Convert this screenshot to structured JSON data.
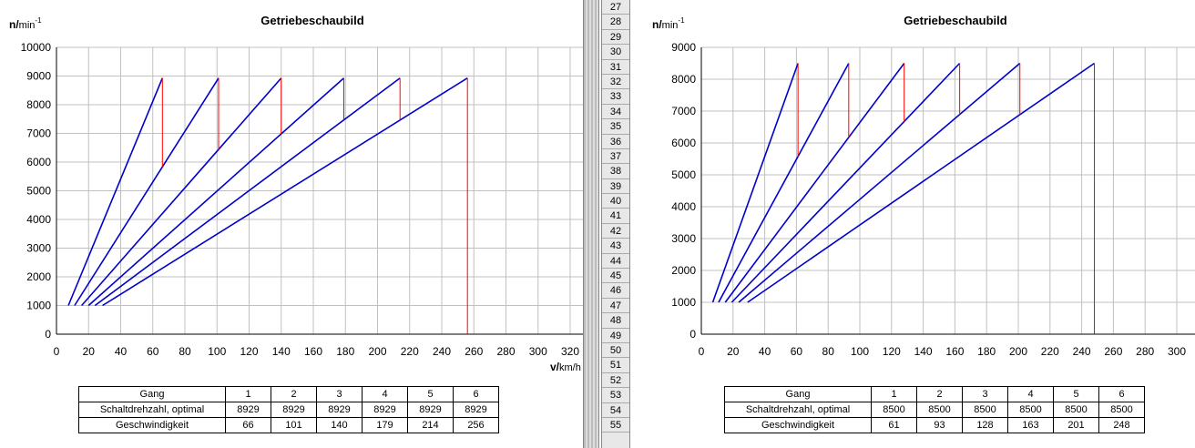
{
  "chart_data": [
    {
      "type": "line",
      "title": "Getriebeschaubild",
      "y_label": {
        "main": "n/",
        "unit": "min",
        "exp": "-1"
      },
      "x_label": {
        "main": "v/",
        "unit": "km/h"
      },
      "xlim": [
        0,
        320
      ],
      "xticks": [
        0,
        20,
        40,
        60,
        80,
        100,
        120,
        140,
        160,
        180,
        200,
        220,
        240,
        260,
        280,
        300,
        320
      ],
      "ylim": [
        0,
        10000
      ],
      "yticks": [
        0,
        1000,
        2000,
        3000,
        4000,
        5000,
        6000,
        7000,
        8000,
        9000,
        10000
      ],
      "grid": true,
      "series": [
        {
          "color": "#0000cc",
          "x": [
            7.4,
            66
          ],
          "values": [
            1000,
            8929
          ]
        },
        {
          "color": "#0000cc",
          "x": [
            11.3,
            101
          ],
          "values": [
            1000,
            8929
          ]
        },
        {
          "color": "#0000cc",
          "x": [
            15.7,
            140
          ],
          "values": [
            1000,
            8929
          ]
        },
        {
          "color": "#0000cc",
          "x": [
            20,
            179
          ],
          "values": [
            1000,
            8929
          ]
        },
        {
          "color": "#0000cc",
          "x": [
            24,
            214
          ],
          "values": [
            1000,
            8929
          ]
        },
        {
          "color": "#0000cc",
          "x": [
            28.7,
            256
          ],
          "values": [
            1000,
            8929
          ]
        },
        {
          "color": "#ff0000",
          "x": [
            66,
            66
          ],
          "values": [
            8929,
            5835
          ]
        },
        {
          "color": "#ff0000",
          "x": [
            101,
            101
          ],
          "values": [
            8929,
            6442
          ]
        },
        {
          "color": "#ff0000",
          "x": [
            140,
            140
          ],
          "values": [
            8929,
            6984
          ]
        },
        {
          "color": "#ff0000",
          "x": [
            179,
            179
          ],
          "values": [
            8929,
            7469
          ]
        },
        {
          "color": "#ff0000",
          "x": [
            214,
            214
          ],
          "values": [
            8929,
            7464
          ]
        },
        {
          "color": "#ff0000",
          "x": [
            256,
            256
          ],
          "values": [
            8929,
            0
          ]
        }
      ]
    },
    {
      "type": "line",
      "title": "Getriebeschaubild",
      "y_label": {
        "main": "n/",
        "unit": "min",
        "exp": "-1"
      },
      "xlim": [
        0,
        300
      ],
      "xticks": [
        0,
        20,
        40,
        60,
        80,
        100,
        120,
        140,
        160,
        180,
        200,
        220,
        240,
        260,
        280,
        300
      ],
      "ylim": [
        0,
        9000
      ],
      "yticks": [
        0,
        1000,
        2000,
        3000,
        4000,
        5000,
        6000,
        7000,
        8000,
        9000
      ],
      "grid": true,
      "series": [
        {
          "color": "#0000cc",
          "x": [
            7.2,
            61
          ],
          "values": [
            1000,
            8500
          ]
        },
        {
          "color": "#0000cc",
          "x": [
            10.9,
            93
          ],
          "values": [
            1000,
            8500
          ]
        },
        {
          "color": "#0000cc",
          "x": [
            15.1,
            128
          ],
          "values": [
            1000,
            8500
          ]
        },
        {
          "color": "#0000cc",
          "x": [
            19.2,
            163
          ],
          "values": [
            1000,
            8500
          ]
        },
        {
          "color": "#0000cc",
          "x": [
            23.6,
            201
          ],
          "values": [
            1000,
            8500
          ]
        },
        {
          "color": "#0000cc",
          "x": [
            29.2,
            248
          ],
          "values": [
            1000,
            8500
          ]
        },
        {
          "color": "#ff0000",
          "x": [
            61,
            61
          ],
          "values": [
            8500,
            5575
          ]
        },
        {
          "color": "#ff0000",
          "x": [
            93,
            93
          ],
          "values": [
            8500,
            6176
          ]
        },
        {
          "color": "#ff0000",
          "x": [
            128,
            128
          ],
          "values": [
            8500,
            6675
          ]
        },
        {
          "color": "#ff0000",
          "x": [
            163,
            163
          ],
          "values": [
            8500,
            6893
          ]
        },
        {
          "color": "#ff0000",
          "x": [
            201,
            201
          ],
          "values": [
            8500,
            6889
          ]
        },
        {
          "color": "#ff0000",
          "x": [
            248,
            248
          ],
          "values": [
            8500,
            0
          ]
        }
      ]
    }
  ],
  "tables": [
    {
      "header": [
        "Gang",
        "1",
        "2",
        "3",
        "4",
        "5",
        "6"
      ],
      "rows": [
        [
          "Schaltdrehzahl, optimal",
          "8929",
          "8929",
          "8929",
          "8929",
          "8929",
          "8929"
        ],
        [
          "Geschwindigkeit",
          "66",
          "101",
          "140",
          "179",
          "214",
          "256"
        ]
      ]
    },
    {
      "header": [
        "Gang",
        "1",
        "2",
        "3",
        "4",
        "5",
        "6"
      ],
      "rows": [
        [
          "Schaltdrehzahl, optimal",
          "8500",
          "8500",
          "8500",
          "8500",
          "8500",
          "8500"
        ],
        [
          "Geschwindigkeit",
          "61",
          "93",
          "128",
          "163",
          "201",
          "248"
        ]
      ]
    }
  ],
  "row_numbers": [
    27,
    28,
    29,
    30,
    31,
    32,
    33,
    34,
    35,
    36,
    37,
    38,
    39,
    40,
    41,
    42,
    43,
    44,
    45,
    46,
    47,
    48,
    49,
    50,
    51,
    52,
    53,
    54,
    55
  ]
}
